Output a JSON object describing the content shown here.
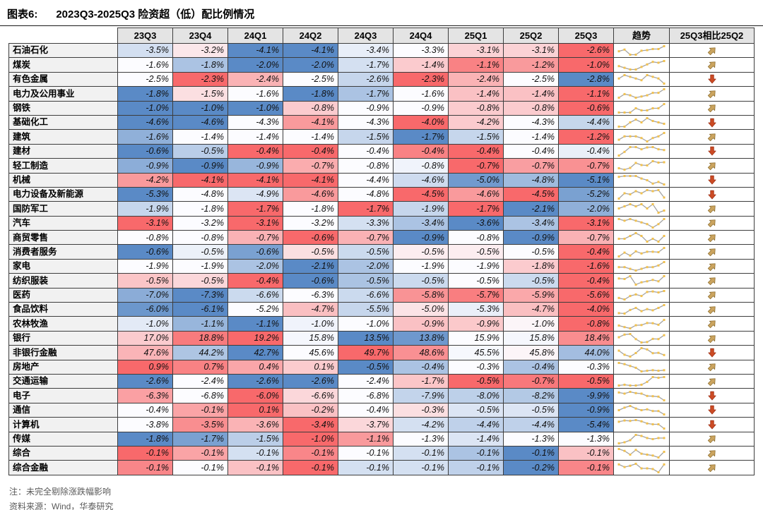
{
  "figure": {
    "label": "图表6:",
    "title": "2023Q3-2025Q3 险资超（低）配比例情况"
  },
  "chart_data": {
    "type": "heatmap",
    "title": "2023Q3-2025Q3 险资超（低）配比例情况",
    "unit": "%",
    "value_format": "percent_one_decimal",
    "columns": [
      "23Q3",
      "23Q4",
      "24Q1",
      "24Q2",
      "24Q3",
      "24Q4",
      "25Q1",
      "25Q2",
      "25Q3"
    ],
    "trend_header": "趋势",
    "compare_header": "25Q3相比25Q2",
    "legend_note": "cell color scale per row: min=blue, median=white, max=red; trend column = sparkline of row values; arrow = 25Q3 vs 25Q2 change",
    "rows": [
      {
        "industry": "石油石化",
        "values": [
          -3.5,
          -3.2,
          -4.1,
          -4.1,
          -3.4,
          -3.3,
          -3.1,
          -3.1,
          -2.6
        ],
        "arrow": "up"
      },
      {
        "industry": "煤炭",
        "values": [
          -1.6,
          -1.8,
          -2.0,
          -2.0,
          -1.7,
          -1.4,
          -1.1,
          -1.2,
          -1.0
        ],
        "arrow": "up"
      },
      {
        "industry": "有色金属",
        "values": [
          -2.5,
          -2.3,
          -2.4,
          -2.5,
          -2.6,
          -2.3,
          -2.4,
          -2.5,
          -2.8
        ],
        "arrow": "down"
      },
      {
        "industry": "电力及公用事业",
        "values": [
          -1.8,
          -1.5,
          -1.6,
          -1.8,
          -1.7,
          -1.6,
          -1.4,
          -1.4,
          -1.1
        ],
        "arrow": "up"
      },
      {
        "industry": "钢铁",
        "values": [
          -1.0,
          -1.0,
          -1.0,
          -0.8,
          -0.9,
          -0.9,
          -0.8,
          -0.8,
          -0.6
        ],
        "arrow": "up"
      },
      {
        "industry": "基础化工",
        "values": [
          -4.6,
          -4.6,
          -4.3,
          -4.1,
          -4.3,
          -4.0,
          -4.2,
          -4.3,
          -4.4
        ],
        "arrow": "down"
      },
      {
        "industry": "建筑",
        "values": [
          -1.6,
          -1.4,
          -1.4,
          -1.4,
          -1.5,
          -1.7,
          -1.5,
          -1.4,
          -1.2
        ],
        "arrow": "up"
      },
      {
        "industry": "建材",
        "values": [
          -0.6,
          -0.5,
          -0.4,
          -0.4,
          -0.4,
          -0.4,
          -0.4,
          -0.4,
          -0.4
        ],
        "arrow": "down",
        "color_values": [
          -0.6,
          -0.5,
          -0.37,
          -0.37,
          -0.43,
          -0.38,
          -0.37,
          -0.43,
          -0.45
        ]
      },
      {
        "industry": "轻工制造",
        "values": [
          -0.9,
          -0.9,
          -0.9,
          -0.7,
          -0.8,
          -0.8,
          -0.7,
          -0.7,
          -0.7
        ],
        "arrow": "up",
        "color_values": [
          -0.88,
          -0.92,
          -0.87,
          -0.73,
          -0.79,
          -0.8,
          -0.68,
          -0.72,
          -0.71
        ]
      },
      {
        "industry": "机械",
        "values": [
          -4.2,
          -4.1,
          -4.1,
          -4.1,
          -4.4,
          -4.6,
          -5.0,
          -4.8,
          -5.1
        ],
        "arrow": "down"
      },
      {
        "industry": "电力设备及新能源",
        "values": [
          -5.3,
          -4.8,
          -4.9,
          -4.6,
          -4.8,
          -4.5,
          -4.6,
          -4.5,
          -5.2
        ],
        "arrow": "down"
      },
      {
        "industry": "国防军工",
        "values": [
          -1.9,
          -1.8,
          -1.7,
          -1.8,
          -1.7,
          -1.9,
          -1.7,
          -2.1,
          -2.0
        ],
        "arrow": "up"
      },
      {
        "industry": "汽车",
        "values": [
          -3.1,
          -3.2,
          -3.1,
          -3.2,
          -3.3,
          -3.4,
          -3.6,
          -3.4,
          -3.1
        ],
        "arrow": "up"
      },
      {
        "industry": "商贸零售",
        "values": [
          -0.8,
          -0.8,
          -0.7,
          -0.6,
          -0.7,
          -0.9,
          -0.8,
          -0.9,
          -0.7
        ],
        "arrow": "up"
      },
      {
        "industry": "消费者服务",
        "values": [
          -0.6,
          -0.5,
          -0.6,
          -0.5,
          -0.5,
          -0.5,
          -0.5,
          -0.5,
          -0.4
        ],
        "arrow": "up",
        "color_values": [
          -0.62,
          -0.53,
          -0.6,
          -0.5,
          -0.55,
          -0.51,
          -0.51,
          -0.52,
          -0.42
        ]
      },
      {
        "industry": "家电",
        "values": [
          -1.9,
          -1.9,
          -2.0,
          -2.1,
          -2.0,
          -1.9,
          -1.9,
          -1.8,
          -1.6
        ],
        "arrow": "up"
      },
      {
        "industry": "纺织服装",
        "values": [
          -0.5,
          -0.5,
          -0.4,
          -0.6,
          -0.5,
          -0.5,
          -0.5,
          -0.5,
          -0.4
        ],
        "arrow": "up",
        "color_values": [
          -0.47,
          -0.48,
          -0.42,
          -0.6,
          -0.55,
          -0.53,
          -0.5,
          -0.53,
          -0.42
        ]
      },
      {
        "industry": "医药",
        "values": [
          -7.0,
          -7.3,
          -6.6,
          -6.3,
          -6.6,
          -5.8,
          -5.7,
          -5.9,
          -5.6
        ],
        "arrow": "up"
      },
      {
        "industry": "食品饮料",
        "values": [
          -6.0,
          -6.1,
          -5.2,
          -4.7,
          -5.5,
          -5.0,
          -5.3,
          -4.7,
          -4.0
        ],
        "arrow": "up"
      },
      {
        "industry": "农林牧渔",
        "values": [
          -1.0,
          -1.1,
          -1.1,
          -1.0,
          -1.0,
          -0.9,
          -0.9,
          -1.0,
          -0.8
        ],
        "arrow": "up",
        "color_values": [
          -1.02,
          -1.08,
          -1.13,
          -1.01,
          -1.0,
          -0.92,
          -0.93,
          -0.99,
          -0.8
        ]
      },
      {
        "industry": "银行",
        "values": [
          17.0,
          18.8,
          19.2,
          15.8,
          13.5,
          13.8,
          15.9,
          15.8,
          18.4
        ],
        "arrow": "up"
      },
      {
        "industry": "非银行金融",
        "values": [
          47.6,
          44.2,
          42.7,
          45.6,
          49.7,
          48.6,
          45.5,
          45.8,
          44.0
        ],
        "arrow": "down"
      },
      {
        "industry": "房地产",
        "values": [
          0.9,
          0.7,
          0.4,
          0.1,
          -0.5,
          -0.4,
          -0.3,
          -0.4,
          -0.3
        ],
        "arrow": "up"
      },
      {
        "industry": "交通运输",
        "values": [
          -2.6,
          -2.4,
          -2.6,
          -2.6,
          -2.4,
          -1.7,
          -0.5,
          -0.7,
          -0.5
        ],
        "arrow": "up"
      },
      {
        "industry": "电子",
        "values": [
          -6.3,
          -6.8,
          -6.0,
          -6.6,
          -6.8,
          -7.9,
          -8.0,
          -8.2,
          -9.9
        ],
        "arrow": "down"
      },
      {
        "industry": "通信",
        "values": [
          -0.4,
          -0.1,
          0.1,
          -0.2,
          -0.4,
          -0.3,
          -0.5,
          -0.5,
          -0.9
        ],
        "arrow": "down"
      },
      {
        "industry": "计算机",
        "values": [
          -3.8,
          -3.5,
          -3.6,
          -3.4,
          -3.7,
          -4.2,
          -4.4,
          -4.4,
          -5.4
        ],
        "arrow": "down"
      },
      {
        "industry": "传媒",
        "values": [
          -1.8,
          -1.7,
          -1.5,
          -1.0,
          -1.1,
          -1.3,
          -1.4,
          -1.3,
          -1.3
        ],
        "arrow": "up"
      },
      {
        "industry": "综合",
        "values": [
          -0.1,
          -0.1,
          -0.1,
          -0.1,
          -0.1,
          -0.1,
          -0.1,
          -0.1,
          -0.1
        ],
        "arrow": "up",
        "color_values": [
          -0.05,
          -0.07,
          -0.11,
          -0.06,
          -0.1,
          -0.11,
          -0.12,
          -0.14,
          -0.08
        ]
      },
      {
        "industry": "综合金融",
        "values": [
          -0.1,
          -0.1,
          -0.1,
          -0.1,
          -0.1,
          -0.1,
          -0.1,
          -0.2,
          -0.1
        ],
        "arrow": "up",
        "color_values": [
          -0.06,
          -0.1,
          -0.08,
          -0.05,
          -0.12,
          -0.12,
          -0.13,
          -0.18,
          -0.06
        ]
      }
    ]
  },
  "notes": {
    "note": "注：未完全剔除涨跌幅影响",
    "source": "资料来源：Wind，华泰研究"
  },
  "colors": {
    "scale_min_blue": "#5A8AC6",
    "scale_mid_white": "#FCFCFF",
    "scale_max_red": "#F8696B",
    "spark_line": "#A3A3A3",
    "spark_marker": "#F2C14E",
    "arrow_up_fill": "#CBA45F",
    "arrow_up_stroke": "#8F7133",
    "arrow_down_fill": "#CC4B24",
    "arrow_down_stroke": "#A03318",
    "header_bg": "#E4E4E4",
    "label_bg": "#F1F1F1",
    "grid_border": "#3D3D3D"
  }
}
